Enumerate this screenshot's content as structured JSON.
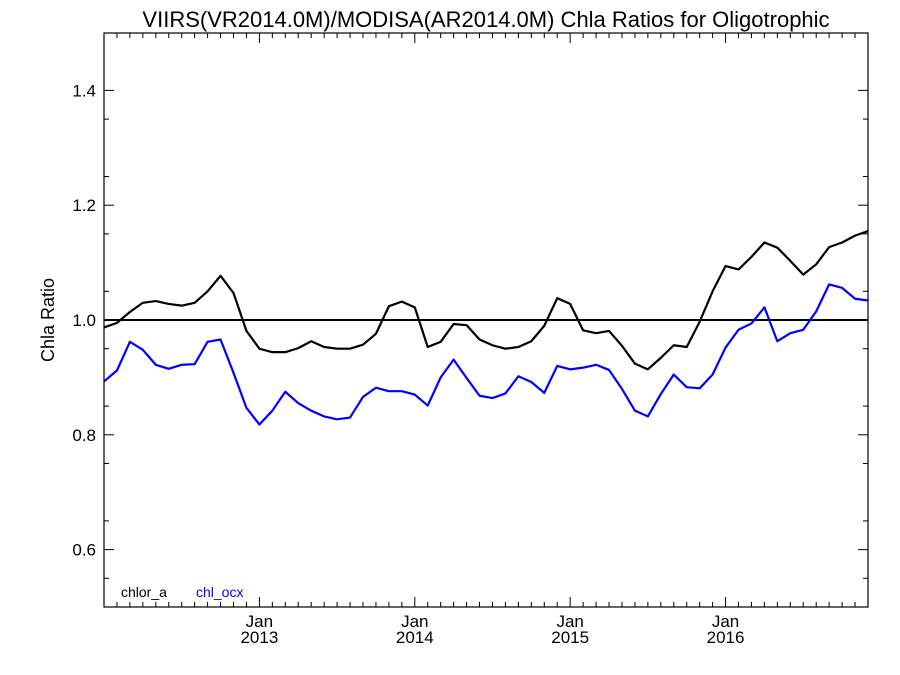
{
  "chart_data": {
    "type": "line",
    "title": "VIIRS(VR2014.0M)/MODISA(AR2014.0M)  Chla Ratios for Oligotrophic",
    "ylabel": "Chla Ratio",
    "xlabel": "",
    "ylim": [
      0.5,
      1.5
    ],
    "xlim": [
      "2012-01",
      "2016-12"
    ],
    "yticks": [
      0.6,
      0.8,
      1.0,
      1.2,
      1.4
    ],
    "ytick_labels": [
      "0.6",
      "0.8",
      "1.0",
      "1.2",
      "1.4"
    ],
    "xtick_labels": [
      {
        "date": "2013-01",
        "line1": "Jan",
        "line2": "2013"
      },
      {
        "date": "2014-01",
        "line1": "Jan",
        "line2": "2014"
      },
      {
        "date": "2015-01",
        "line1": "Jan",
        "line2": "2015"
      },
      {
        "date": "2016-01",
        "line1": "Jan",
        "line2": "2016"
      }
    ],
    "grid": false,
    "reference_line": {
      "y": 1.0,
      "color": "#000000"
    },
    "legend": {
      "placement": "bottom-left"
    },
    "x": [
      "2012-01",
      "2012-02",
      "2012-03",
      "2012-04",
      "2012-05",
      "2012-06",
      "2012-07",
      "2012-08",
      "2012-09",
      "2012-10",
      "2012-11",
      "2012-12",
      "2013-01",
      "2013-02",
      "2013-03",
      "2013-04",
      "2013-05",
      "2013-06",
      "2013-07",
      "2013-08",
      "2013-09",
      "2013-10",
      "2013-11",
      "2013-12",
      "2014-01",
      "2014-02",
      "2014-03",
      "2014-04",
      "2014-05",
      "2014-06",
      "2014-07",
      "2014-08",
      "2014-09",
      "2014-10",
      "2014-11",
      "2014-12",
      "2015-01",
      "2015-02",
      "2015-03",
      "2015-04",
      "2015-05",
      "2015-06",
      "2015-07",
      "2015-08",
      "2015-09",
      "2015-10",
      "2015-11",
      "2015-12",
      "2016-01",
      "2016-02",
      "2016-03",
      "2016-04",
      "2016-05",
      "2016-06",
      "2016-07",
      "2016-08",
      "2016-09",
      "2016-10",
      "2016-11",
      "2016-12"
    ],
    "series": [
      {
        "name": "chlor_a",
        "color": "#000000",
        "values": [
          0.987,
          0.995,
          1.014,
          1.03,
          1.033,
          1.028,
          1.025,
          1.03,
          1.05,
          1.077,
          1.047,
          0.981,
          0.95,
          0.944,
          0.944,
          0.951,
          0.963,
          0.953,
          0.95,
          0.95,
          0.957,
          0.976,
          1.024,
          1.032,
          1.022,
          0.953,
          0.962,
          0.993,
          0.991,
          0.966,
          0.956,
          0.95,
          0.953,
          0.963,
          0.99,
          1.038,
          1.028,
          0.982,
          0.977,
          0.981,
          0.955,
          0.924,
          0.914,
          0.934,
          0.956,
          0.953,
          0.997,
          1.05,
          1.094,
          1.088,
          1.11,
          1.135,
          1.126,
          1.103,
          1.079,
          1.097,
          1.127,
          1.135,
          1.147,
          1.155
        ]
      },
      {
        "name": "chl_ocx",
        "color": "#0000ff",
        "values": [
          0.893,
          0.912,
          0.962,
          0.948,
          0.922,
          0.915,
          0.922,
          0.923,
          0.962,
          0.966,
          0.908,
          0.847,
          0.818,
          0.842,
          0.875,
          0.855,
          0.842,
          0.832,
          0.827,
          0.83,
          0.866,
          0.882,
          0.876,
          0.876,
          0.87,
          0.851,
          0.9,
          0.931,
          0.899,
          0.868,
          0.864,
          0.872,
          0.902,
          0.892,
          0.873,
          0.92,
          0.914,
          0.917,
          0.922,
          0.913,
          0.88,
          0.842,
          0.832,
          0.871,
          0.905,
          0.883,
          0.881,
          0.905,
          0.952,
          0.983,
          0.994,
          1.022,
          0.963,
          0.977,
          0.983,
          1.015,
          1.062,
          1.056,
          1.037,
          1.034
        ]
      }
    ]
  }
}
